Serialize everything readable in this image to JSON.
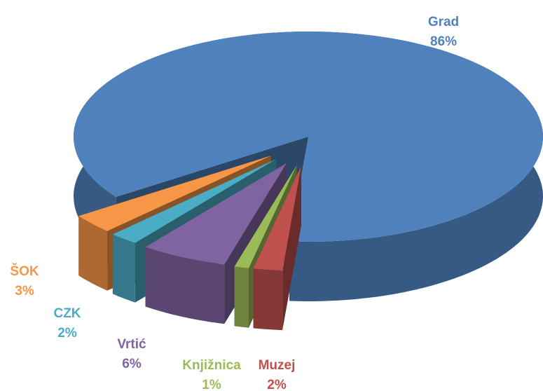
{
  "chart_data": {
    "type": "pie",
    "categories": [
      "Grad",
      "ŠOK",
      "CZK",
      "Vrtić",
      "Knjižnica",
      "Muzej"
    ],
    "values": [
      86,
      3,
      2,
      6,
      1,
      2
    ],
    "value_labels": [
      "86%",
      "3%",
      "2%",
      "6%",
      "1%",
      "2%"
    ],
    "colors": [
      "#4f81bd",
      "#f79646",
      "#4bacc6",
      "#8064a2",
      "#9bbb59",
      "#c0504d"
    ]
  }
}
